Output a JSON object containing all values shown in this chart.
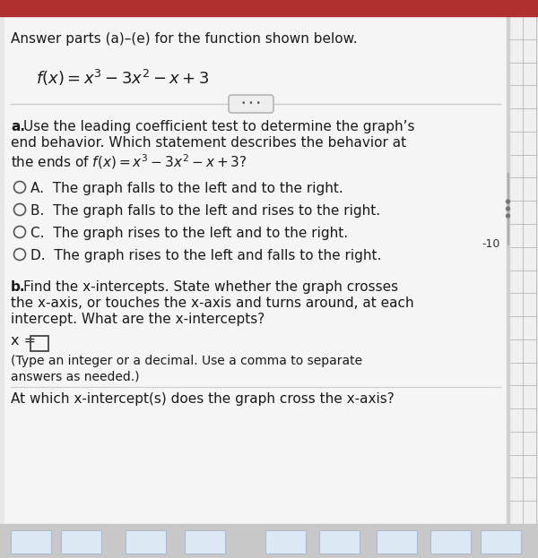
{
  "bg_color": "#e8e8e8",
  "panel_color": "#f5f5f5",
  "top_bar_color": "#b03030",
  "bottom_bar_color": "#5588cc",
  "text_color": "#1a1a1a",
  "circle_color": "#555555",
  "button_bg": "#e8e8e8",
  "button_border": "#aaaaaa",
  "sidebar_bg": "#e0e0e0",
  "sidebar_line_color": "#bbbbbb",
  "divider_line_color": "#cccccc",
  "right_label": "-10",
  "header": "Answer parts (a)–(e) for the function shown below.",
  "option_A": "A.  The graph falls to the left and to the right.",
  "option_B": "B.  The graph falls to the left and rises to the right.",
  "option_C": "C.  The graph rises to the left and to the right.",
  "option_D": "D.  The graph rises to the left and falls to the right.",
  "bottom_text": "At which x-intercept(s) does the graph cross the x-axis?"
}
